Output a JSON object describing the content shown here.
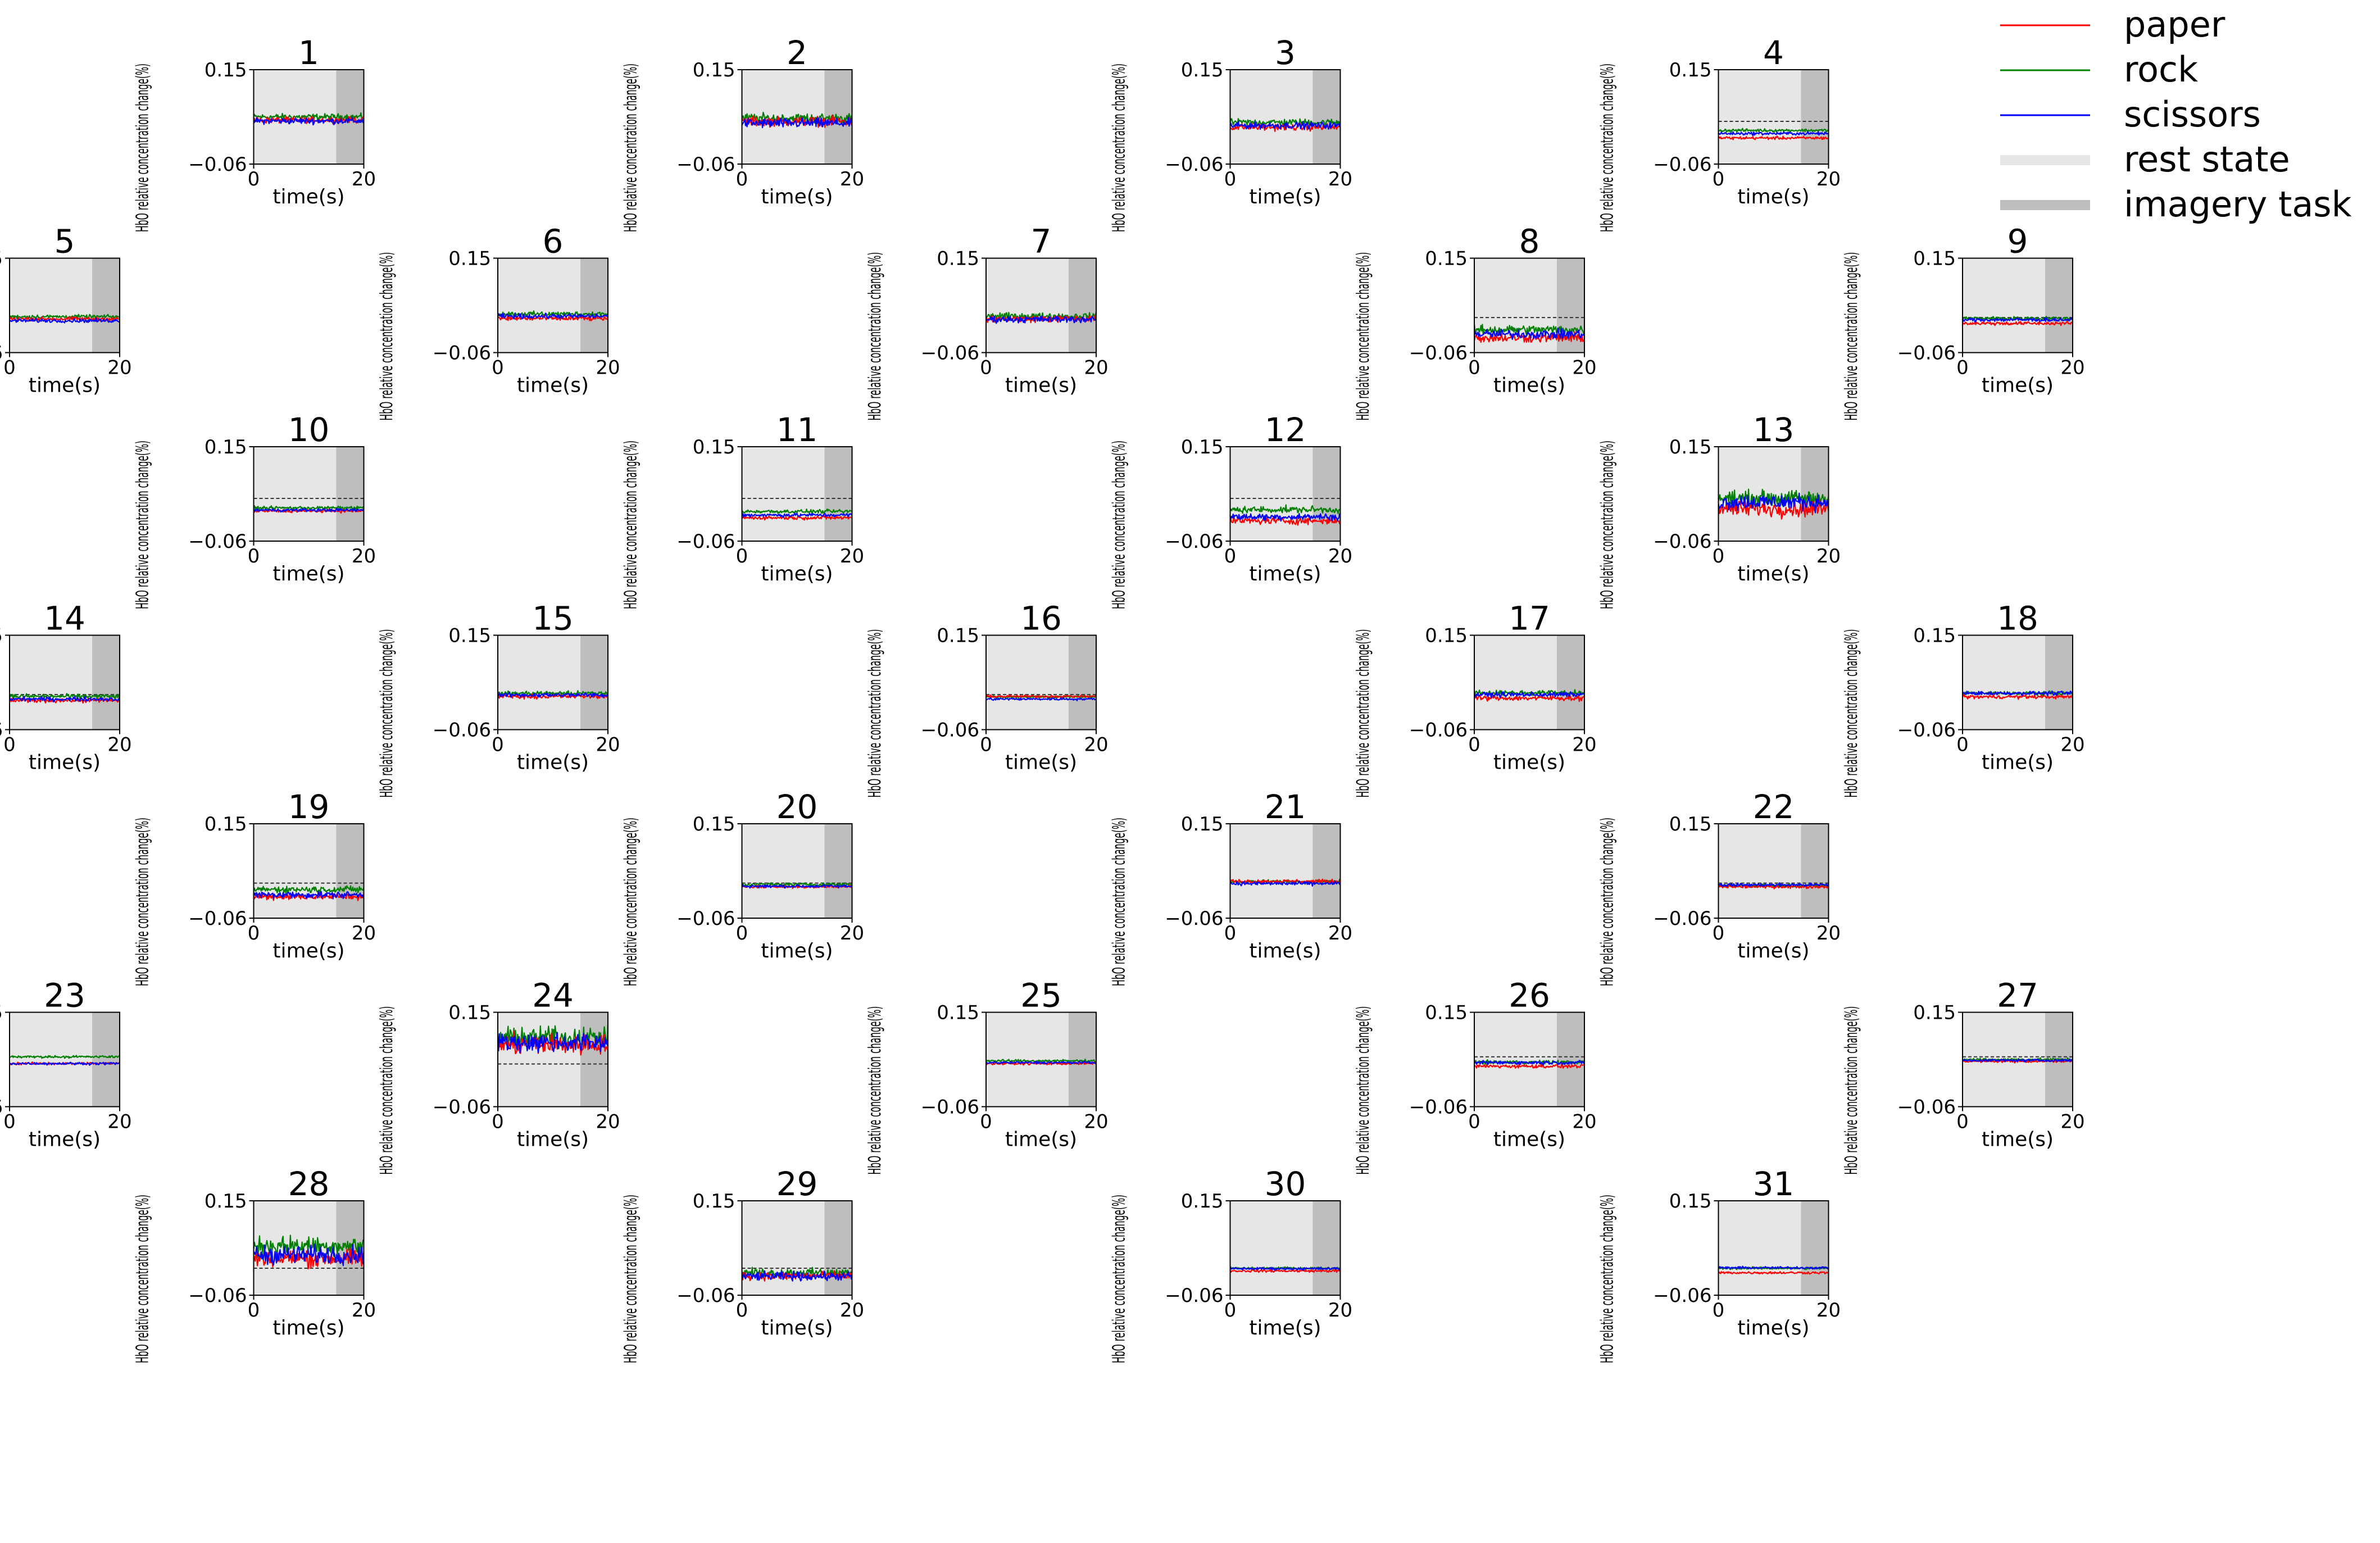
{
  "chart_data": {
    "type": "line",
    "xlabel": "time(s)",
    "ylabel": "HbO relative concentration change(%)",
    "ylim": [
      -0.06,
      0.15
    ],
    "xlim": [
      0,
      20
    ],
    "ytick_labels": [
      "0.15",
      "−0.06"
    ],
    "xtick_labels": [
      "0",
      "20"
    ],
    "phases": [
      {
        "name": "rest state",
        "start": 0,
        "end": 15
      },
      {
        "name": "imagery task",
        "start": 15,
        "end": 20
      }
    ],
    "legend": [
      {
        "label": "paper",
        "color": "#ff0000",
        "kind": "line"
      },
      {
        "label": "rock",
        "color": "#008000",
        "kind": "line"
      },
      {
        "label": "scissors",
        "color": "#0000ff",
        "kind": "line"
      },
      {
        "label": "rest state",
        "color": "#e6e6e6",
        "kind": "band"
      },
      {
        "label": "imagery task",
        "color": "#bebebe",
        "kind": "band"
      }
    ],
    "legend_position": "top-right",
    "series_colors": {
      "paper": "#ff0000",
      "rock": "#008000",
      "scissors": "#0000ff"
    },
    "channels": [
      {
        "id": "1",
        "col": 1,
        "row": 0,
        "paper": 0.038,
        "rock": 0.045,
        "scissors": 0.036,
        "noise": 0.01,
        "baseline": null
      },
      {
        "id": "2",
        "col": 3,
        "row": 0,
        "paper": 0.035,
        "rock": 0.042,
        "scissors": 0.031,
        "noise": 0.016,
        "baseline": null
      },
      {
        "id": "3",
        "col": 5,
        "row": 0,
        "paper": 0.022,
        "rock": 0.033,
        "scissors": 0.026,
        "noise": 0.011,
        "baseline": null
      },
      {
        "id": "4",
        "col": 7,
        "row": 0,
        "paper": -0.002,
        "rock": 0.015,
        "scissors": 0.008,
        "noise": 0.005,
        "baseline": 0.035
      },
      {
        "id": "5",
        "col": 0,
        "row": 1,
        "paper": 0.015,
        "rock": 0.02,
        "scissors": 0.011,
        "noise": 0.006,
        "baseline": null
      },
      {
        "id": "6",
        "col": 2,
        "row": 1,
        "paper": 0.016,
        "rock": 0.026,
        "scissors": 0.021,
        "noise": 0.008,
        "baseline": null
      },
      {
        "id": "7",
        "col": 4,
        "row": 1,
        "paper": 0.015,
        "rock": 0.021,
        "scissors": 0.014,
        "noise": 0.011,
        "baseline": null
      },
      {
        "id": "8",
        "col": 6,
        "row": 1,
        "paper": -0.027,
        "rock": -0.009,
        "scissors": -0.019,
        "noise": 0.015,
        "baseline": 0.018
      },
      {
        "id": "9",
        "col": 8,
        "row": 1,
        "paper": 0.005,
        "rock": 0.016,
        "scissors": 0.013,
        "noise": 0.006,
        "baseline": 0.018
      },
      {
        "id": "10",
        "col": 1,
        "row": 2,
        "paper": 0.007,
        "rock": 0.014,
        "scissors": 0.009,
        "noise": 0.005,
        "baseline": 0.035
      },
      {
        "id": "11",
        "col": 3,
        "row": 2,
        "paper": -0.008,
        "rock": 0.006,
        "scissors": -0.002,
        "noise": 0.006,
        "baseline": 0.035
      },
      {
        "id": "12",
        "col": 5,
        "row": 2,
        "paper": -0.015,
        "rock": 0.01,
        "scissors": -0.006,
        "noise": 0.011,
        "baseline": 0.035
      },
      {
        "id": "13",
        "col": 7,
        "row": 2,
        "paper": 0.012,
        "rock": 0.035,
        "scissors": 0.027,
        "noise": 0.026,
        "baseline": null
      },
      {
        "id": "14",
        "col": 0,
        "row": 3,
        "paper": 0.005,
        "rock": 0.014,
        "scissors": 0.008,
        "noise": 0.007,
        "baseline": 0.018
      },
      {
        "id": "15",
        "col": 2,
        "row": 3,
        "paper": 0.014,
        "rock": 0.021,
        "scissors": 0.017,
        "noise": 0.007,
        "baseline": null
      },
      {
        "id": "16",
        "col": 4,
        "row": 3,
        "paper": 0.014,
        "rock": 0.013,
        "scissors": 0.008,
        "noise": 0.004,
        "baseline": 0.018
      },
      {
        "id": "17",
        "col": 6,
        "row": 3,
        "paper": 0.01,
        "rock": 0.022,
        "scissors": 0.018,
        "noise": 0.008,
        "baseline": null
      },
      {
        "id": "18",
        "col": 8,
        "row": 3,
        "paper": 0.013,
        "rock": 0.021,
        "scissors": 0.021,
        "noise": 0.006,
        "baseline": null
      },
      {
        "id": "19",
        "col": 1,
        "row": 4,
        "paper": -0.012,
        "rock": 0.004,
        "scissors": -0.008,
        "noise": 0.011,
        "baseline": 0.018
      },
      {
        "id": "20",
        "col": 3,
        "row": 4,
        "paper": 0.01,
        "rock": 0.015,
        "scissors": 0.011,
        "noise": 0.005,
        "baseline": 0.018
      },
      {
        "id": "21",
        "col": 5,
        "row": 4,
        "paper": 0.022,
        "rock": 0.021,
        "scissors": 0.017,
        "noise": 0.006,
        "baseline": null
      },
      {
        "id": "22",
        "col": 7,
        "row": 4,
        "paper": 0.01,
        "rock": 0.012,
        "scissors": 0.014,
        "noise": 0.005,
        "baseline": 0.018
      },
      {
        "id": "23",
        "col": 0,
        "row": 5,
        "paper": 0.036,
        "rock": 0.051,
        "scissors": 0.036,
        "noise": 0.004,
        "baseline": null
      },
      {
        "id": "24",
        "col": 2,
        "row": 5,
        "paper": 0.078,
        "rock": 0.094,
        "scissors": 0.083,
        "noise": 0.033,
        "baseline": 0.035
      },
      {
        "id": "25",
        "col": 4,
        "row": 5,
        "paper": 0.036,
        "rock": 0.042,
        "scissors": 0.038,
        "noise": 0.004,
        "baseline": null
      },
      {
        "id": "26",
        "col": 6,
        "row": 5,
        "paper": 0.03,
        "rock": 0.039,
        "scissors": 0.038,
        "noise": 0.006,
        "baseline": 0.051
      },
      {
        "id": "27",
        "col": 8,
        "row": 5,
        "paper": 0.041,
        "rock": 0.045,
        "scissors": 0.043,
        "noise": 0.004,
        "baseline": 0.051
      },
      {
        "id": "28",
        "col": 1,
        "row": 6,
        "paper": 0.022,
        "rock": 0.05,
        "scissors": 0.03,
        "noise": 0.03,
        "baseline": 0.0
      },
      {
        "id": "29",
        "col": 3,
        "row": 6,
        "paper": -0.017,
        "rock": -0.01,
        "scissors": -0.018,
        "noise": 0.014,
        "baseline": 0.0
      },
      {
        "id": "30",
        "col": 5,
        "row": 6,
        "paper": -0.006,
        "rock": 0.0,
        "scissors": -0.001,
        "noise": 0.004,
        "baseline": 0.0
      },
      {
        "id": "31",
        "col": 7,
        "row": 6,
        "paper": -0.01,
        "rock": 0.0,
        "scissors": 0.001,
        "noise": 0.004,
        "baseline": 0.0
      }
    ]
  }
}
